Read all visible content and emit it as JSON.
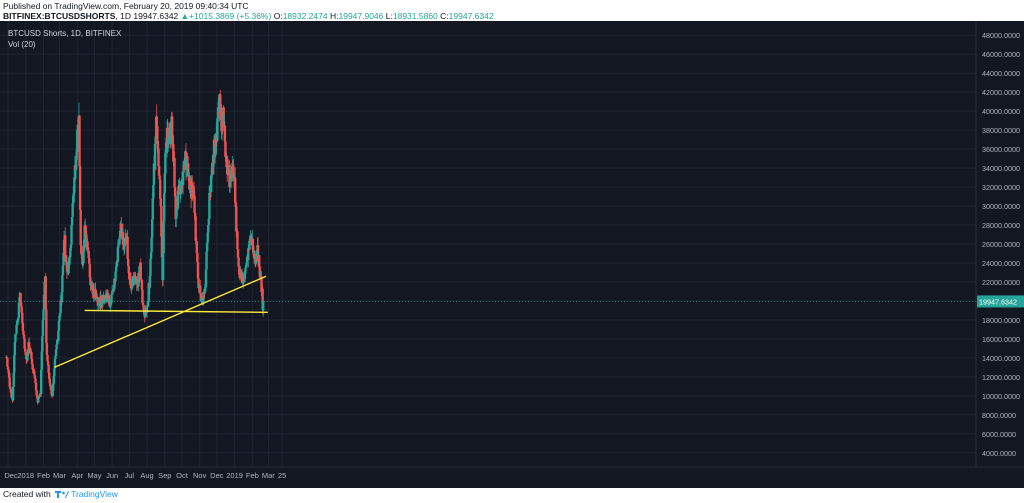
{
  "header": {
    "published": "Published on TradingView.com, February 20, 2019 09:40:34 UTC",
    "symbol": "BITFINEX:BTCUSDSHORTS",
    "interval": "1D",
    "last": "19947.6342",
    "change_arrow": "▲",
    "change": "+1015.3869 (+5.36%)",
    "o_label": "O:",
    "o_value": "18932.2474",
    "h_label": "H:",
    "h_value": "19947.9046",
    "l_label": "L:",
    "l_value": "18931.5860",
    "c_label": "C:",
    "c_value": "19947.6342"
  },
  "chart_title": "BTCUSD Shorts, 1D, BITFINEX",
  "indicator_label": "Vol (20)",
  "price_badge": "19947.6342",
  "footer": {
    "created_with": "Created with",
    "brand": "TradingView"
  },
  "colors": {
    "background": "#131722",
    "grid": "#1f2433",
    "up": "#26a69a",
    "down": "#ef5350",
    "trendline": "#ffeb3b",
    "price_line": "#26a69a",
    "axis_text": "#b2b5be"
  },
  "chart_data": {
    "type": "candlestick",
    "title": "BTCUSD Shorts, 1D, BITFINEX",
    "ylim": [
      2500,
      49500
    ],
    "x_tick_labels": [
      "Dec",
      "2018",
      "Feb",
      "Mar",
      "Apr",
      "May",
      "Jun",
      "Jul",
      "Aug",
      "Sep",
      "Oct",
      "Nov",
      "Dec",
      "2019",
      "Feb",
      "Mar",
      "25"
    ],
    "x_tick_dates": [
      "2017-12-01",
      "2018-01-01",
      "2018-02-01",
      "2018-03-01",
      "2018-04-01",
      "2018-05-01",
      "2018-06-01",
      "2018-07-01",
      "2018-08-01",
      "2018-09-01",
      "2018-10-01",
      "2018-11-01",
      "2018-12-01",
      "2019-01-01",
      "2019-02-01",
      "2019-03-01",
      "2019-03-25"
    ],
    "y_tick_labels": [
      "4000.0000",
      "6000.0000",
      "8000.0000",
      "10000.0000",
      "12000.0000",
      "14000.0000",
      "16000.0000",
      "18000.0000",
      "20000.0000",
      "22000.0000",
      "24000.0000",
      "26000.0000",
      "28000.0000",
      "30000.0000",
      "32000.0000",
      "34000.0000",
      "36000.0000",
      "38000.0000",
      "40000.0000",
      "42000.0000",
      "44000.0000",
      "46000.0000",
      "48000.0000"
    ],
    "y_ticks": [
      4000,
      6000,
      8000,
      10000,
      12000,
      14000,
      16000,
      18000,
      20000,
      22000,
      24000,
      26000,
      28000,
      30000,
      32000,
      34000,
      36000,
      38000,
      40000,
      42000,
      44000,
      46000,
      48000
    ],
    "last_price": 19947.6342,
    "closes": [
      [
        "2017-11-28",
        14500
      ],
      [
        "2017-12-04",
        11000
      ],
      [
        "2017-12-09",
        9300
      ],
      [
        "2017-12-13",
        15500
      ],
      [
        "2017-12-18",
        18000
      ],
      [
        "2017-12-22",
        20500
      ],
      [
        "2017-12-28",
        16500
      ],
      [
        "2018-01-02",
        13500
      ],
      [
        "2018-01-06",
        15500
      ],
      [
        "2018-01-12",
        13500
      ],
      [
        "2018-01-17",
        11500
      ],
      [
        "2018-01-22",
        9500
      ],
      [
        "2018-01-27",
        10500
      ],
      [
        "2018-01-31",
        18500
      ],
      [
        "2018-02-04",
        23000
      ],
      [
        "2018-02-06",
        15500
      ],
      [
        "2018-02-11",
        11500
      ],
      [
        "2018-02-16",
        10000
      ],
      [
        "2018-02-20",
        13000
      ],
      [
        "2018-02-25",
        15500
      ],
      [
        "2018-03-01",
        18500
      ],
      [
        "2018-03-05",
        21000
      ],
      [
        "2018-03-09",
        27000
      ],
      [
        "2018-03-14",
        23000
      ],
      [
        "2018-03-19",
        24500
      ],
      [
        "2018-03-24",
        30000
      ],
      [
        "2018-03-28",
        34000
      ],
      [
        "2018-04-01",
        37000
      ],
      [
        "2018-04-04",
        39500
      ],
      [
        "2018-04-07",
        25500
      ],
      [
        "2018-04-10",
        23500
      ],
      [
        "2018-04-14",
        27500
      ],
      [
        "2018-04-19",
        25500
      ],
      [
        "2018-04-24",
        22000
      ],
      [
        "2018-04-29",
        21000
      ],
      [
        "2018-05-04",
        20500
      ],
      [
        "2018-05-08",
        19800
      ],
      [
        "2018-05-13",
        20200
      ],
      [
        "2018-05-18",
        20000
      ],
      [
        "2018-05-23",
        20500
      ],
      [
        "2018-05-28",
        20000
      ],
      [
        "2018-06-02",
        21000
      ],
      [
        "2018-06-07",
        22500
      ],
      [
        "2018-06-12",
        26000
      ],
      [
        "2018-06-16",
        28500
      ],
      [
        "2018-06-21",
        26000
      ],
      [
        "2018-06-26",
        27000
      ],
      [
        "2018-06-30",
        23000
      ],
      [
        "2018-07-05",
        21500
      ],
      [
        "2018-07-10",
        22500
      ],
      [
        "2018-07-15",
        21500
      ],
      [
        "2018-07-20",
        23500
      ],
      [
        "2018-07-25",
        19500
      ],
      [
        "2018-07-29",
        18500
      ],
      [
        "2018-08-01",
        19000
      ],
      [
        "2018-08-05",
        22000
      ],
      [
        "2018-08-09",
        27000
      ],
      [
        "2018-08-13",
        33500
      ],
      [
        "2018-08-17",
        38500
      ],
      [
        "2018-08-21",
        34000
      ],
      [
        "2018-08-25",
        30000
      ],
      [
        "2018-08-28",
        22000
      ],
      [
        "2018-09-01",
        34000
      ],
      [
        "2018-09-05",
        37500
      ],
      [
        "2018-09-09",
        36500
      ],
      [
        "2018-09-13",
        38500
      ],
      [
        "2018-09-17",
        34500
      ],
      [
        "2018-09-20",
        29500
      ],
      [
        "2018-09-24",
        31000
      ],
      [
        "2018-09-28",
        32000
      ],
      [
        "2018-10-02",
        33000
      ],
      [
        "2018-10-06",
        35000
      ],
      [
        "2018-10-10",
        34500
      ],
      [
        "2018-10-14",
        32000
      ],
      [
        "2018-10-18",
        31500
      ],
      [
        "2018-10-22",
        30500
      ],
      [
        "2018-10-26",
        26000
      ],
      [
        "2018-10-30",
        21500
      ],
      [
        "2018-11-03",
        20500
      ],
      [
        "2018-11-07",
        20000
      ],
      [
        "2018-11-11",
        21500
      ],
      [
        "2018-11-14",
        26500
      ],
      [
        "2018-11-18",
        30500
      ],
      [
        "2018-11-22",
        34000
      ],
      [
        "2018-11-26",
        36000
      ],
      [
        "2018-11-30",
        37000
      ],
      [
        "2018-12-03",
        40000
      ],
      [
        "2018-12-06",
        41500
      ],
      [
        "2018-12-09",
        37500
      ],
      [
        "2018-12-12",
        39500
      ],
      [
        "2018-12-15",
        37000
      ],
      [
        "2018-12-18",
        34500
      ],
      [
        "2018-12-21",
        33000
      ],
      [
        "2018-12-24",
        32500
      ],
      [
        "2018-12-28",
        33500
      ],
      [
        "2019-01-01",
        32500
      ],
      [
        "2019-01-04",
        28000
      ],
      [
        "2019-01-08",
        23500
      ],
      [
        "2019-01-12",
        22500
      ],
      [
        "2019-01-16",
        22500
      ],
      [
        "2019-01-20",
        23000
      ],
      [
        "2019-01-24",
        24500
      ],
      [
        "2019-01-28",
        26000
      ],
      [
        "2019-01-31",
        26500
      ],
      [
        "2019-02-03",
        25500
      ],
      [
        "2019-02-06",
        24500
      ],
      [
        "2019-02-10",
        25500
      ],
      [
        "2019-02-13",
        23500
      ],
      [
        "2019-02-16",
        22000
      ],
      [
        "2019-02-18",
        21000
      ],
      [
        "2019-02-19",
        18932
      ],
      [
        "2019-02-20",
        19947.6342
      ]
    ],
    "trendlines": [
      {
        "name": "rising",
        "start": [
          "2018-02-20",
          13000
        ],
        "end": [
          "2019-02-25",
          22600
        ]
      },
      {
        "name": "horizontal",
        "start": [
          "2018-04-14",
          19000
        ],
        "end": [
          "2019-02-28",
          18800
        ]
      }
    ]
  }
}
